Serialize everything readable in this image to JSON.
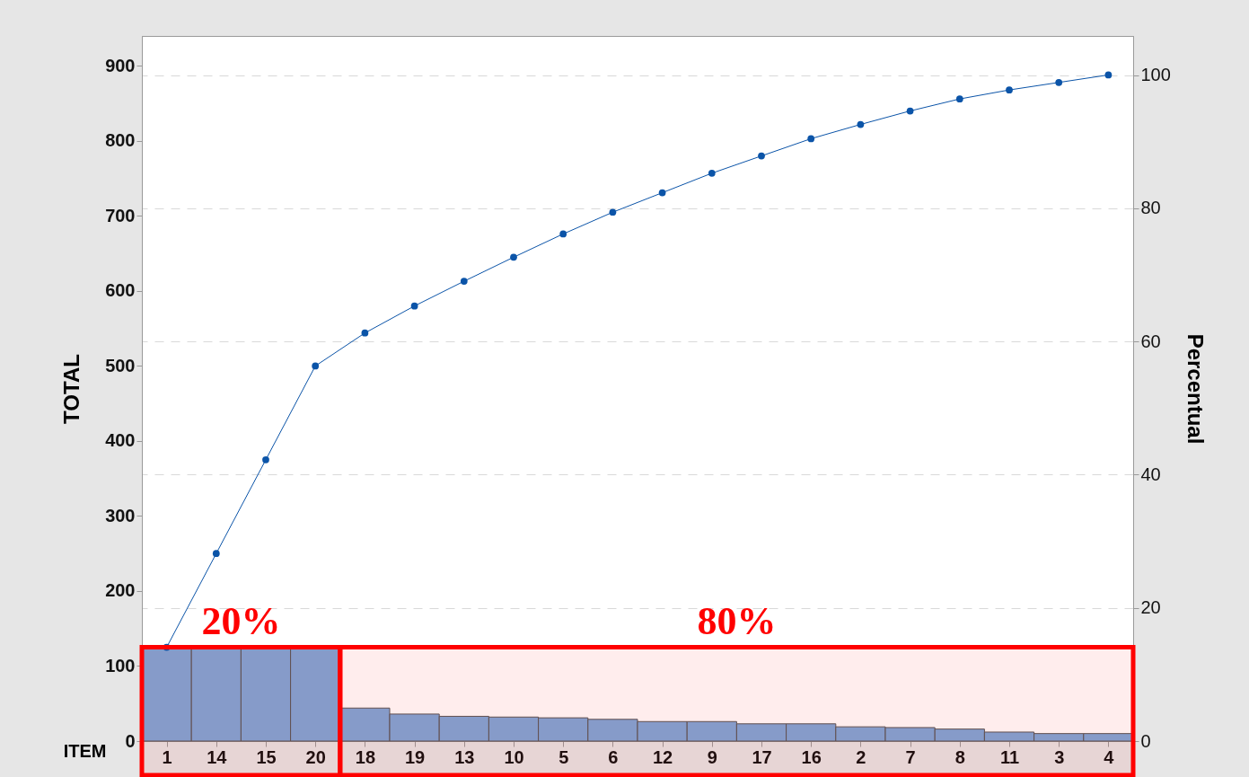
{
  "chart_data": {
    "type": "line",
    "xlabel": "ITEM",
    "ylabel": "TOTAL",
    "y2label": "Percentual",
    "categories": [
      "1",
      "14",
      "15",
      "20",
      "18",
      "19",
      "13",
      "10",
      "5",
      "6",
      "12",
      "9",
      "17",
      "16",
      "2",
      "7",
      "8",
      "11",
      "3",
      "4"
    ],
    "series": [
      {
        "type": "bar",
        "color": "#7da7d9",
        "values": [
          125,
          125,
          125,
          125,
          44,
          36,
          33,
          32,
          31,
          29,
          26,
          26,
          23,
          23,
          19,
          18,
          16,
          12,
          10,
          10
        ]
      },
      {
        "color": "#0b54a8",
        "marker": "circle",
        "values": [
          125,
          250,
          375,
          500,
          544,
          580,
          613,
          645,
          676,
          705,
          731,
          757,
          780,
          803,
          822,
          840,
          856,
          868,
          878,
          888
        ]
      }
    ],
    "ylim": [
      0,
      940
    ],
    "yticks": [
      0,
      100,
      200,
      300,
      400,
      500,
      600,
      700,
      800,
      900
    ],
    "y2lim": [
      0,
      105.9
    ],
    "y2ticks": [
      0,
      20,
      40,
      60,
      80,
      100
    ],
    "grid": true,
    "bands": [
      {
        "axis": "x",
        "from": "1",
        "to": "20",
        "label": "20%",
        "color": "#ff0000"
      },
      {
        "axis": "x",
        "from": "18",
        "to": "4",
        "label": "80%",
        "color": "#ff0000"
      }
    ]
  }
}
